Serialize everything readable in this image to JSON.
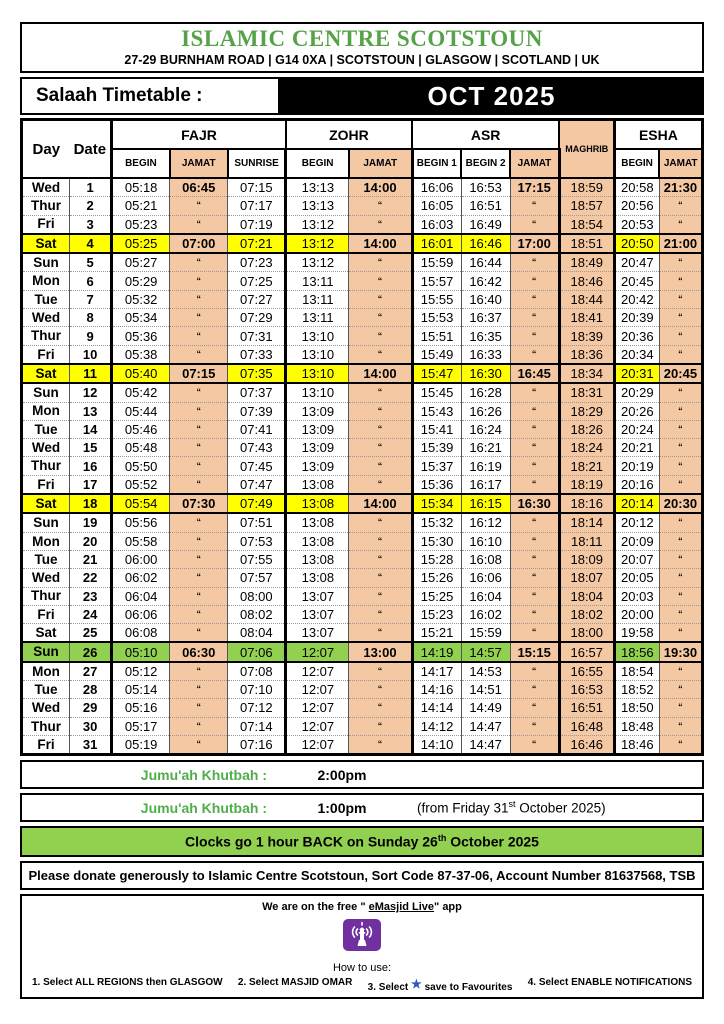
{
  "header": {
    "org_name": "ISLAMIC CENTRE SCOTSTOUN",
    "address": "27-29 BURNHAM ROAD | G14 0XA | SCOTSTOUN | GLASGOW | SCOTLAND | UK",
    "timetable_label": "Salaah Timetable :",
    "month": "OCT 2025"
  },
  "table": {
    "headers": {
      "day": "Day",
      "date": "Date",
      "fajr": "FAJR",
      "zohr": "ZOHR",
      "asr": "ASR",
      "maghrib": "MAGHRIB",
      "esha": "ESHA",
      "begin": "BEGIN",
      "jamat": "JAMAT",
      "sunrise": "SUNRISE",
      "begin1": "BEGIN 1",
      "begin2": "BEGIN 2"
    },
    "rows": [
      [
        "Wed",
        "1",
        "05:18",
        "06:45",
        "07:15",
        "13:13",
        "14:00",
        "16:06",
        "16:53",
        "17:15",
        "18:59",
        "20:58",
        "21:30",
        ""
      ],
      [
        "Thur",
        "2",
        "05:21",
        "“",
        "07:17",
        "13:13",
        "“",
        "16:05",
        "16:51",
        "“",
        "18:57",
        "20:56",
        "“",
        ""
      ],
      [
        "Fri",
        "3",
        "05:23",
        "“",
        "07:19",
        "13:12",
        "“",
        "16:03",
        "16:49",
        "“",
        "18:54",
        "20:53",
        "“",
        ""
      ],
      [
        "Sat",
        "4",
        "05:25",
        "07:00",
        "07:21",
        "13:12",
        "14:00",
        "16:01",
        "16:46",
        "17:00",
        "18:51",
        "20:50",
        "21:00",
        "yellow"
      ],
      [
        "Sun",
        "5",
        "05:27",
        "“",
        "07:23",
        "13:12",
        "“",
        "15:59",
        "16:44",
        "“",
        "18:49",
        "20:47",
        "“",
        ""
      ],
      [
        "Mon",
        "6",
        "05:29",
        "“",
        "07:25",
        "13:11",
        "“",
        "15:57",
        "16:42",
        "“",
        "18:46",
        "20:45",
        "“",
        ""
      ],
      [
        "Tue",
        "7",
        "05:32",
        "“",
        "07:27",
        "13:11",
        "“",
        "15:55",
        "16:40",
        "“",
        "18:44",
        "20:42",
        "“",
        ""
      ],
      [
        "Wed",
        "8",
        "05:34",
        "“",
        "07:29",
        "13:11",
        "“",
        "15:53",
        "16:37",
        "“",
        "18:41",
        "20:39",
        "“",
        ""
      ],
      [
        "Thur",
        "9",
        "05:36",
        "“",
        "07:31",
        "13:10",
        "“",
        "15:51",
        "16:35",
        "“",
        "18:39",
        "20:36",
        "“",
        ""
      ],
      [
        "Fri",
        "10",
        "05:38",
        "“",
        "07:33",
        "13:10",
        "“",
        "15:49",
        "16:33",
        "“",
        "18:36",
        "20:34",
        "“",
        ""
      ],
      [
        "Sat",
        "11",
        "05:40",
        "07:15",
        "07:35",
        "13:10",
        "14:00",
        "15:47",
        "16:30",
        "16:45",
        "18:34",
        "20:31",
        "20:45",
        "yellow"
      ],
      [
        "Sun",
        "12",
        "05:42",
        "“",
        "07:37",
        "13:10",
        "“",
        "15:45",
        "16:28",
        "“",
        "18:31",
        "20:29",
        "“",
        ""
      ],
      [
        "Mon",
        "13",
        "05:44",
        "“",
        "07:39",
        "13:09",
        "“",
        "15:43",
        "16:26",
        "“",
        "18:29",
        "20:26",
        "“",
        ""
      ],
      [
        "Tue",
        "14",
        "05:46",
        "“",
        "07:41",
        "13:09",
        "“",
        "15:41",
        "16:24",
        "“",
        "18:26",
        "20:24",
        "“",
        ""
      ],
      [
        "Wed",
        "15",
        "05:48",
        "“",
        "07:43",
        "13:09",
        "“",
        "15:39",
        "16:21",
        "“",
        "18:24",
        "20:21",
        "“",
        ""
      ],
      [
        "Thur",
        "16",
        "05:50",
        "“",
        "07:45",
        "13:09",
        "“",
        "15:37",
        "16:19",
        "“",
        "18:21",
        "20:19",
        "“",
        ""
      ],
      [
        "Fri",
        "17",
        "05:52",
        "“",
        "07:47",
        "13:08",
        "“",
        "15:36",
        "16:17",
        "“",
        "18:19",
        "20:16",
        "“",
        ""
      ],
      [
        "Sat",
        "18",
        "05:54",
        "07:30",
        "07:49",
        "13:08",
        "14:00",
        "15:34",
        "16:15",
        "16:30",
        "18:16",
        "20:14",
        "20:30",
        "yellow"
      ],
      [
        "Sun",
        "19",
        "05:56",
        "“",
        "07:51",
        "13:08",
        "“",
        "15:32",
        "16:12",
        "“",
        "18:14",
        "20:12",
        "“",
        ""
      ],
      [
        "Mon",
        "20",
        "05:58",
        "“",
        "07:53",
        "13:08",
        "“",
        "15:30",
        "16:10",
        "“",
        "18:11",
        "20:09",
        "“",
        ""
      ],
      [
        "Tue",
        "21",
        "06:00",
        "“",
        "07:55",
        "13:08",
        "“",
        "15:28",
        "16:08",
        "“",
        "18:09",
        "20:07",
        "“",
        ""
      ],
      [
        "Wed",
        "22",
        "06:02",
        "“",
        "07:57",
        "13:08",
        "“",
        "15:26",
        "16:06",
        "“",
        "18:07",
        "20:05",
        "“",
        ""
      ],
      [
        "Thur",
        "23",
        "06:04",
        "“",
        "08:00",
        "13:07",
        "“",
        "15:25",
        "16:04",
        "“",
        "18:04",
        "20:03",
        "“",
        ""
      ],
      [
        "Fri",
        "24",
        "06:06",
        "“",
        "08:02",
        "13:07",
        "“",
        "15:23",
        "16:02",
        "“",
        "18:02",
        "20:00",
        "“",
        ""
      ],
      [
        "Sat",
        "25",
        "06:08",
        "“",
        "08:04",
        "13:07",
        "“",
        "15:21",
        "15:59",
        "“",
        "18:00",
        "19:58",
        "“",
        ""
      ],
      [
        "Sun",
        "26",
        "05:10",
        "06:30",
        "07:06",
        "12:07",
        "13:00",
        "14:19",
        "14:57",
        "15:15",
        "16:57",
        "18:56",
        "19:30",
        "green"
      ],
      [
        "Mon",
        "27",
        "05:12",
        "“",
        "07:08",
        "12:07",
        "“",
        "14:17",
        "14:53",
        "“",
        "16:55",
        "18:54",
        "“",
        ""
      ],
      [
        "Tue",
        "28",
        "05:14",
        "“",
        "07:10",
        "12:07",
        "“",
        "14:16",
        "14:51",
        "“",
        "16:53",
        "18:52",
        "“",
        ""
      ],
      [
        "Wed",
        "29",
        "05:16",
        "“",
        "07:12",
        "12:07",
        "“",
        "14:14",
        "14:49",
        "“",
        "16:51",
        "18:50",
        "“",
        ""
      ],
      [
        "Thur",
        "30",
        "05:17",
        "“",
        "07:14",
        "12:07",
        "“",
        "14:12",
        "14:47",
        "“",
        "16:48",
        "18:48",
        "“",
        ""
      ],
      [
        "Fri",
        "31",
        "05:19",
        "“",
        "07:16",
        "12:07",
        "“",
        "14:10",
        "14:47",
        "“",
        "16:46",
        "18:46",
        "“",
        ""
      ]
    ]
  },
  "footer": {
    "jumuah1_label": "Jumu'ah Khutbah :",
    "jumuah1_time": "2:00pm",
    "jumuah2_label": "Jumu'ah Khutbah :",
    "jumuah2_time": "1:00pm",
    "jumuah2_note_pre": "(from Friday 31",
    "jumuah2_note_sup": "st",
    "jumuah2_note_post": " October 2025)",
    "clocks_pre": "Clocks go 1 hour BACK on Sunday 26",
    "clocks_sup": "th",
    "clocks_post": " October 2025",
    "donate": "Please donate generously to Islamic Centre Scotstoun, Sort Code 87-37-06, Account Number 81637568, TSB",
    "emasjid_pre": "We are on the free \" ",
    "emasjid_app": "eMasjid Live",
    "emasjid_post": "\" app",
    "app_icon": "mosque-broadcast-icon",
    "how_to_use": "How to use:",
    "step1": "1. Select ALL REGIONS then GLASGOW",
    "step2": "2. Select MASJID OMAR",
    "step3_pre": "3. Select",
    "step3_star": "★",
    "step3_post": "save to Favourites",
    "step4": "4. Select ENABLE NOTIFICATIONS"
  },
  "colors": {
    "accent_green": "#55a346",
    "jamat_peach": "#f5c8a4",
    "highlight_yellow": "#ffff00",
    "highlight_green": "#92d050",
    "app_purple": "#7030a0",
    "star_blue": "#2f5bb7"
  }
}
